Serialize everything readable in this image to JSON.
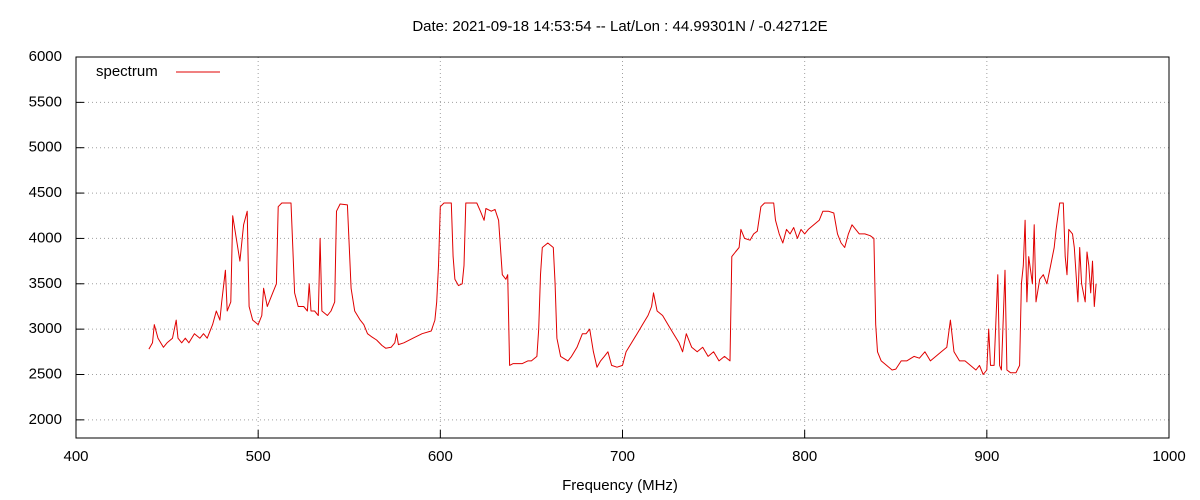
{
  "chart_data": {
    "type": "line",
    "title": "Date: 2021-09-18 14:53:54  --  Lat/Lon : 44.99301N / -0.42712E",
    "xlabel": "Frequency (MHz)",
    "xlim": [
      400,
      1000
    ],
    "xticks": [
      400,
      500,
      600,
      700,
      800,
      900,
      1000
    ],
    "ylim": [
      1800,
      6000
    ],
    "yticks": [
      2000,
      2500,
      3000,
      3500,
      4000,
      4500,
      5000,
      5500,
      6000
    ],
    "grid": true,
    "legend": "top-left",
    "x": [
      440,
      442,
      443,
      445,
      448,
      450,
      453,
      455,
      456,
      458,
      460,
      462,
      465,
      468,
      470,
      472,
      475,
      477,
      479,
      480,
      482,
      483,
      485,
      486,
      488,
      490,
      492,
      494,
      495,
      497,
      500,
      502,
      503,
      505,
      508,
      510,
      511,
      513,
      518,
      519,
      520,
      522,
      525,
      527,
      528,
      529,
      531,
      533,
      534,
      535,
      538,
      540,
      542,
      543,
      545,
      549,
      550,
      551,
      553,
      556,
      558,
      560,
      562,
      565,
      568,
      570,
      573,
      575,
      576,
      577,
      580,
      585,
      590,
      595,
      597,
      598,
      599,
      600,
      602,
      606,
      607,
      608,
      610,
      612,
      613,
      614,
      620,
      622,
      624,
      625,
      628,
      630,
      632,
      634,
      636,
      637,
      638,
      640,
      645,
      648,
      650,
      653,
      654,
      655,
      656,
      659,
      662,
      663,
      664,
      666,
      670,
      672,
      675,
      678,
      680,
      682,
      684,
      686,
      688,
      690,
      692,
      694,
      697,
      700,
      702,
      705,
      708,
      711,
      714,
      716,
      717,
      719,
      722,
      725,
      728,
      731,
      733,
      735,
      738,
      741,
      744,
      747,
      750,
      753,
      756,
      759,
      760,
      762,
      764,
      765,
      767,
      770,
      772,
      774,
      776,
      778,
      783,
      784,
      786,
      788,
      790,
      792,
      794,
      796,
      798,
      800,
      802,
      805,
      808,
      810,
      813,
      816,
      818,
      820,
      822,
      824,
      826,
      828,
      830,
      833,
      836,
      838,
      839,
      840,
      842,
      845,
      848,
      850,
      853,
      856,
      860,
      863,
      866,
      869,
      872,
      875,
      878,
      880,
      882,
      885,
      888,
      891,
      894,
      896,
      898,
      900,
      901,
      902,
      904,
      906,
      907,
      908,
      910,
      911,
      913,
      916,
      918,
      919,
      920,
      921,
      922,
      923,
      925,
      926,
      927,
      929,
      931,
      933,
      935,
      937,
      938,
      940,
      942,
      943,
      944,
      945,
      947,
      948,
      950,
      951,
      952,
      954,
      955,
      956,
      957,
      958,
      959,
      960
    ],
    "series": [
      {
        "name": "spectrum",
        "color": "#e00000",
        "values": [
          2780,
          2850,
          3050,
          2900,
          2800,
          2850,
          2900,
          3100,
          2900,
          2850,
          2900,
          2850,
          2950,
          2900,
          2950,
          2900,
          3050,
          3200,
          3100,
          3300,
          3650,
          3200,
          3300,
          4250,
          4000,
          3750,
          4150,
          4300,
          3250,
          3100,
          3050,
          3150,
          3450,
          3250,
          3400,
          3500,
          4350,
          4390,
          4390,
          3900,
          3400,
          3250,
          3250,
          3200,
          3500,
          3200,
          3200,
          3150,
          4000,
          3200,
          3150,
          3200,
          3300,
          4300,
          4380,
          4370,
          3900,
          3450,
          3200,
          3100,
          3050,
          2950,
          2920,
          2880,
          2820,
          2790,
          2800,
          2850,
          2950,
          2830,
          2850,
          2900,
          2950,
          2980,
          3100,
          3300,
          3700,
          4350,
          4390,
          4390,
          3800,
          3550,
          3480,
          3500,
          3700,
          4390,
          4390,
          4300,
          4200,
          4330,
          4300,
          4320,
          4200,
          3600,
          3550,
          3600,
          2600,
          2620,
          2620,
          2650,
          2650,
          2700,
          3000,
          3600,
          3900,
          3950,
          3900,
          3500,
          2900,
          2700,
          2650,
          2700,
          2800,
          2950,
          2950,
          3000,
          2750,
          2580,
          2650,
          2700,
          2750,
          2600,
          2580,
          2600,
          2750,
          2850,
          2950,
          3050,
          3150,
          3250,
          3400,
          3200,
          3150,
          3050,
          2950,
          2850,
          2750,
          2950,
          2800,
          2750,
          2800,
          2700,
          2750,
          2650,
          2700,
          2650,
          3800,
          3850,
          3900,
          4100,
          4000,
          3980,
          4050,
          4080,
          4350,
          4390,
          4390,
          4200,
          4050,
          3950,
          4100,
          4050,
          4120,
          4000,
          4100,
          4050,
          4100,
          4150,
          4200,
          4300,
          4300,
          4280,
          4050,
          3950,
          3900,
          4050,
          4150,
          4100,
          4050,
          4050,
          4030,
          4000,
          3050,
          2750,
          2650,
          2600,
          2550,
          2560,
          2650,
          2650,
          2700,
          2680,
          2750,
          2650,
          2700,
          2750,
          2800,
          3100,
          2750,
          2650,
          2650,
          2600,
          2550,
          2600,
          2500,
          2550,
          3000,
          2600,
          2600,
          3600,
          2600,
          2550,
          3650,
          2550,
          2520,
          2520,
          2600,
          3500,
          3700,
          4200,
          3300,
          3800,
          3500,
          4150,
          3300,
          3550,
          3600,
          3500,
          3700,
          3900,
          4100,
          4390,
          4390,
          3800,
          3600,
          4100,
          4050,
          3900,
          3300,
          3900,
          3500,
          3300,
          3850,
          3700,
          3400,
          3750,
          3250,
          3500
        ]
      }
    ]
  }
}
